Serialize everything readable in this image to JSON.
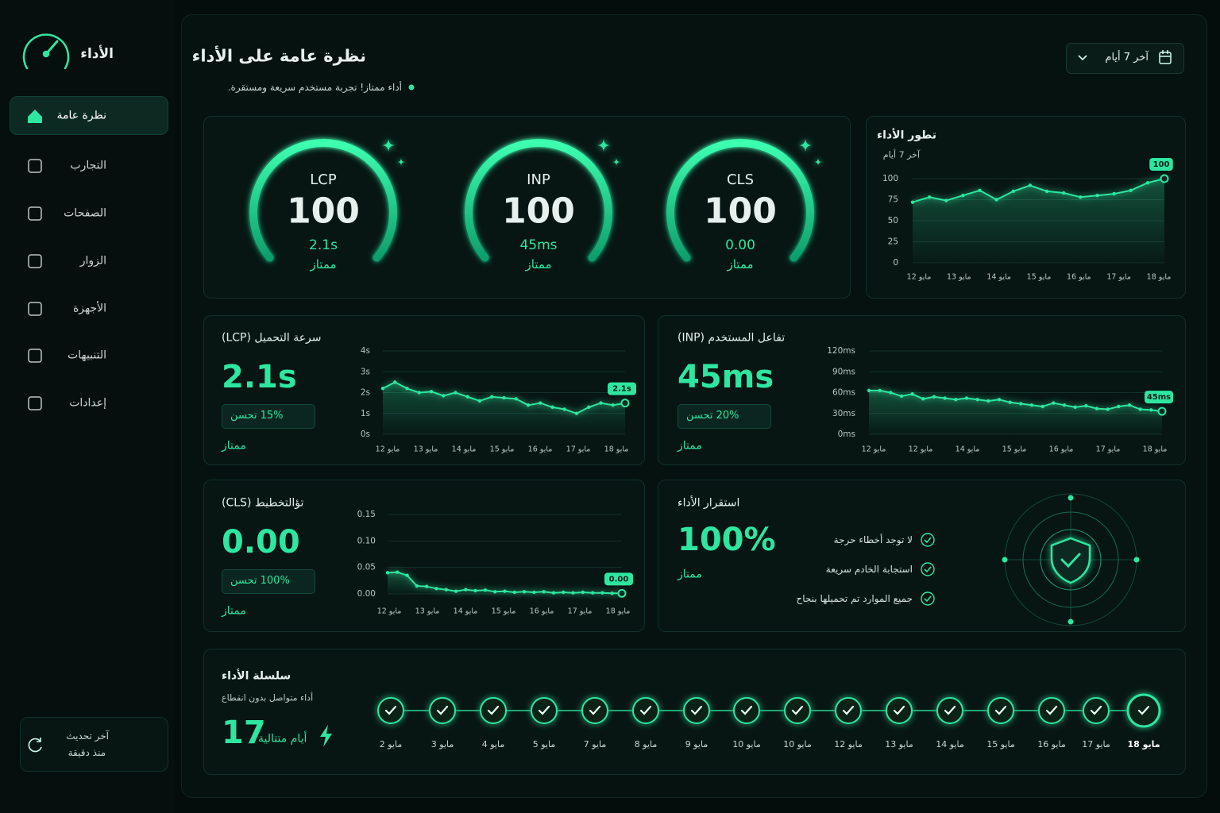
{
  "sidebar": {
    "app_title": "الأداء",
    "nav": [
      "نظرة عامة",
      "التجارب",
      "الصفحات",
      "الزوار",
      "الأجهزة",
      "التنبيهات",
      "إعدادات"
    ],
    "footer_label": "آخر تحديث",
    "footer_time": "منذ دقيقة"
  },
  "header": {
    "title": "نظرة عامة على الأداء",
    "subtitle": "أداء ممتاز! تجربة مستخدم سريعة ومستقرة.",
    "date_range": "آخر 7 أيام"
  },
  "gauges": [
    {
      "label": "LCP",
      "score": 100,
      "value": "2.1s",
      "rating": "ممتاز"
    },
    {
      "label": "INP",
      "score": 100,
      "value": "45ms",
      "rating": "ممتاز"
    },
    {
      "label": "CLS",
      "score": 100,
      "value": "0.00",
      "rating": "ممتاز"
    }
  ],
  "trend": {
    "type": "line",
    "title": "تطور الأداء",
    "subtitle": "آخر 7 أيام",
    "x_labels": [
      "مايو 12",
      "مايو 13",
      "مايو 14",
      "مايو 15",
      "مايو 16",
      "مايو 17",
      "مايو 18"
    ],
    "values": [
      72,
      78,
      74,
      80,
      86,
      75,
      85,
      92,
      85,
      83,
      78,
      80,
      82,
      86,
      95,
      100
    ],
    "ylim": [
      0,
      100
    ],
    "yticks": [
      0,
      25,
      50,
      75,
      100
    ],
    "color": "#2ee6a0"
  },
  "lcp": {
    "type": "line",
    "title": "سرعة التحميل (LCP)",
    "big_value": "2.1s",
    "change": "15% تحسن",
    "rating": "ممتاز",
    "badge": "2.1s",
    "x_labels": [
      "مايو 12",
      "مايو 13",
      "مايو 14",
      "مايو 15",
      "مايو 16",
      "مايو 17",
      "مايو 18"
    ],
    "values": [
      2.2,
      2.5,
      2.2,
      2.0,
      2.05,
      1.85,
      2.0,
      1.8,
      1.6,
      1.8,
      1.75,
      1.7,
      1.4,
      1.5,
      1.3,
      1.2,
      1.0,
      1.3,
      1.5,
      1.4,
      1.5
    ],
    "ylim": [
      0,
      4
    ],
    "yticks": [
      {
        "value": 0,
        "label": "0s"
      },
      {
        "value": 1,
        "label": "1s"
      },
      {
        "value": 2,
        "label": "2s"
      },
      {
        "value": 3,
        "label": "3s"
      },
      {
        "value": 4,
        "label": "4s"
      }
    ],
    "color": "#2ee6a0"
  },
  "inp": {
    "type": "line",
    "title": "تفاعل المستخدم (INP)",
    "big_value": "45ms",
    "change": "20% تحسن",
    "rating": "ممتاز",
    "badge": "45ms",
    "x_labels": [
      "مايو 12",
      "مايو 12",
      "مايو 14",
      "مايو 15",
      "مايو 16",
      "مايو 17",
      "مايو 18"
    ],
    "values": [
      63,
      63,
      60,
      55,
      58,
      51,
      54,
      52,
      50,
      52,
      50,
      48,
      50,
      46,
      44,
      42,
      40,
      45,
      42,
      39,
      41,
      37,
      36,
      40,
      42,
      36,
      35,
      33
    ],
    "ylim": [
      0,
      120
    ],
    "yticks": [
      {
        "value": 0,
        "label": "0ms"
      },
      {
        "value": 30,
        "label": "30ms"
      },
      {
        "value": 60,
        "label": "60ms"
      },
      {
        "value": 90,
        "label": "90ms"
      },
      {
        "value": 120,
        "label": "120ms"
      }
    ],
    "color": "#2ee6a0"
  },
  "cls": {
    "type": "line",
    "title": "تؤالتخطيط (CLS)",
    "big_value": "0.00",
    "change": "100% تحسن",
    "rating": "ممتاز",
    "badge": "0.00",
    "x_labels": [
      "مايو 12",
      "مايو 13",
      "مايو 14",
      "مايو 15",
      "مايو 16",
      "مايو 17",
      "مايو 18"
    ],
    "values": [
      0.04,
      0.041,
      0.035,
      0.015,
      0.014,
      0.01,
      0.008,
      0.005,
      0.008,
      0.006,
      0.007,
      0.004,
      0.005,
      0.003,
      0.004,
      0.003,
      0.004,
      0.002,
      0.003,
      0.002,
      0.003,
      0.002,
      0.002,
      0.001,
      0.001
    ],
    "ylim": [
      0,
      0.15
    ],
    "yticks": [
      {
        "value": 0,
        "label": "0.00"
      },
      {
        "value": 0.05,
        "label": "0.05"
      },
      {
        "value": 0.1,
        "label": "0.10"
      },
      {
        "value": 0.15,
        "label": "0.15"
      }
    ],
    "color": "#2ee6a0"
  },
  "stability": {
    "title": "استقرار الأداء",
    "value": "100%",
    "rating": "ممتاز",
    "checks": [
      "لا توجد أخطاء حرجة",
      "استجابة الخادم سريعة",
      "جميع الموارد تم تحميلها بنجاح"
    ]
  },
  "streak": {
    "title": "سلسلة الأداء",
    "subtitle": "أداء متواصل بدون انقطاع",
    "count": 17,
    "unit": "أيام متتالية",
    "days": [
      "2 مايو",
      "3 مايو",
      "4 مايو",
      "5 مايو",
      "7 مايو",
      "8 مايو",
      "9 مايو",
      "10 مايو",
      "10 مايو",
      "12 مايو",
      "13 مايو",
      "14 مايو",
      "15 مايو",
      "16 مايو",
      "17 مايو",
      "18 مايو"
    ]
  }
}
